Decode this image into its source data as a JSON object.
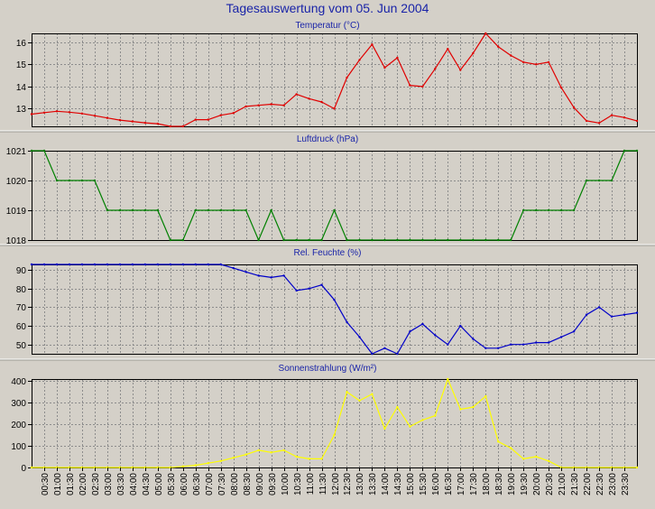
{
  "title": "Tagesauswertung vom 05. Jun 2004",
  "colors": {
    "background": "#d4d0c8",
    "title": "#1a24a8",
    "grid": "#8c8c8c",
    "separator": "#ffffff"
  },
  "x_tick_labels": [
    "00:30",
    "01:00",
    "01:30",
    "02:00",
    "02:30",
    "03:00",
    "03:30",
    "04:00",
    "04:30",
    "05:00",
    "05:30",
    "06:00",
    "06:30",
    "07:00",
    "07:30",
    "08:00",
    "08:30",
    "09:00",
    "09:30",
    "10:00",
    "10:30",
    "11:00",
    "11:30",
    "12:00",
    "12:30",
    "13:00",
    "13:30",
    "14:00",
    "14:30",
    "15:00",
    "15:30",
    "16:00",
    "16:30",
    "17:00",
    "17:30",
    "18:00",
    "18:30",
    "19:00",
    "19:30",
    "20:00",
    "20:30",
    "21:00",
    "21:30",
    "22:00",
    "22:30",
    "23:00",
    "23:30"
  ],
  "chart_data": [
    {
      "type": "line",
      "title": "Temperatur (°C)",
      "color": "#e00000",
      "ylim": [
        12.2,
        16.4
      ],
      "yticks": [
        13,
        14,
        15,
        16
      ],
      "series": [
        {
          "values": [
            12.75,
            12.82,
            12.88,
            12.84,
            12.78,
            12.68,
            12.58,
            12.48,
            12.42,
            12.36,
            12.32,
            12.2,
            12.2,
            12.5,
            12.5,
            12.7,
            12.8,
            13.1,
            13.15,
            13.2,
            13.15,
            13.65,
            13.45,
            13.3,
            13.0,
            14.4,
            15.2,
            15.9,
            14.85,
            15.3,
            14.05,
            14.0,
            14.8,
            15.7,
            14.75,
            15.5,
            16.4,
            15.8,
            15.4,
            15.1,
            15.0,
            15.1,
            13.95,
            13.05,
            12.45,
            12.35,
            12.7,
            12.6,
            12.45
          ]
        }
      ]
    },
    {
      "type": "line",
      "title": "Luftdruck (hPa)",
      "color": "#008000",
      "ylim": [
        1018,
        1021
      ],
      "yticks": [
        1018,
        1019,
        1020,
        1021
      ],
      "series": [
        {
          "values": [
            1021,
            1021,
            1020,
            1020,
            1020,
            1020,
            1019,
            1019,
            1019,
            1019,
            1019,
            1018,
            1018,
            1019,
            1019,
            1019,
            1019,
            1019,
            1018,
            1019,
            1018,
            1018,
            1018,
            1018,
            1019,
            1018,
            1018,
            1018,
            1018,
            1018,
            1018,
            1018,
            1018,
            1018,
            1018,
            1018,
            1018,
            1018,
            1018,
            1019,
            1019,
            1019,
            1019,
            1019,
            1020,
            1020,
            1020,
            1021,
            1021
          ]
        }
      ]
    },
    {
      "type": "line",
      "title": "Rel. Feuchte (%)",
      "color": "#0000c8",
      "ylim": [
        45,
        93
      ],
      "yticks": [
        50,
        60,
        70,
        80,
        90
      ],
      "series": [
        {
          "values": [
            93,
            93,
            93,
            93,
            93,
            93,
            93,
            93,
            93,
            93,
            93,
            93,
            93,
            93,
            93,
            93,
            91,
            89,
            87,
            86,
            87,
            79,
            80,
            82,
            74,
            62,
            54,
            45,
            48,
            45,
            57,
            61,
            55,
            50,
            60,
            53,
            48,
            48,
            50,
            50,
            51,
            51,
            54,
            57,
            66,
            70,
            65,
            66,
            67
          ]
        }
      ]
    },
    {
      "type": "line",
      "title": "Sonnenstrahlung (W/m²)",
      "color": "#ffff00",
      "ylim": [
        0,
        410
      ],
      "yticks": [
        0,
        100,
        200,
        300,
        400
      ],
      "series": [
        {
          "values": [
            0,
            0,
            0,
            0,
            0,
            0,
            0,
            0,
            0,
            0,
            0,
            0,
            5,
            10,
            20,
            30,
            45,
            60,
            80,
            70,
            80,
            50,
            40,
            40,
            150,
            350,
            310,
            340,
            180,
            280,
            190,
            220,
            240,
            410,
            270,
            280,
            330,
            120,
            90,
            40,
            50,
            30,
            0,
            0,
            0,
            0,
            0,
            0,
            0
          ]
        }
      ]
    }
  ]
}
